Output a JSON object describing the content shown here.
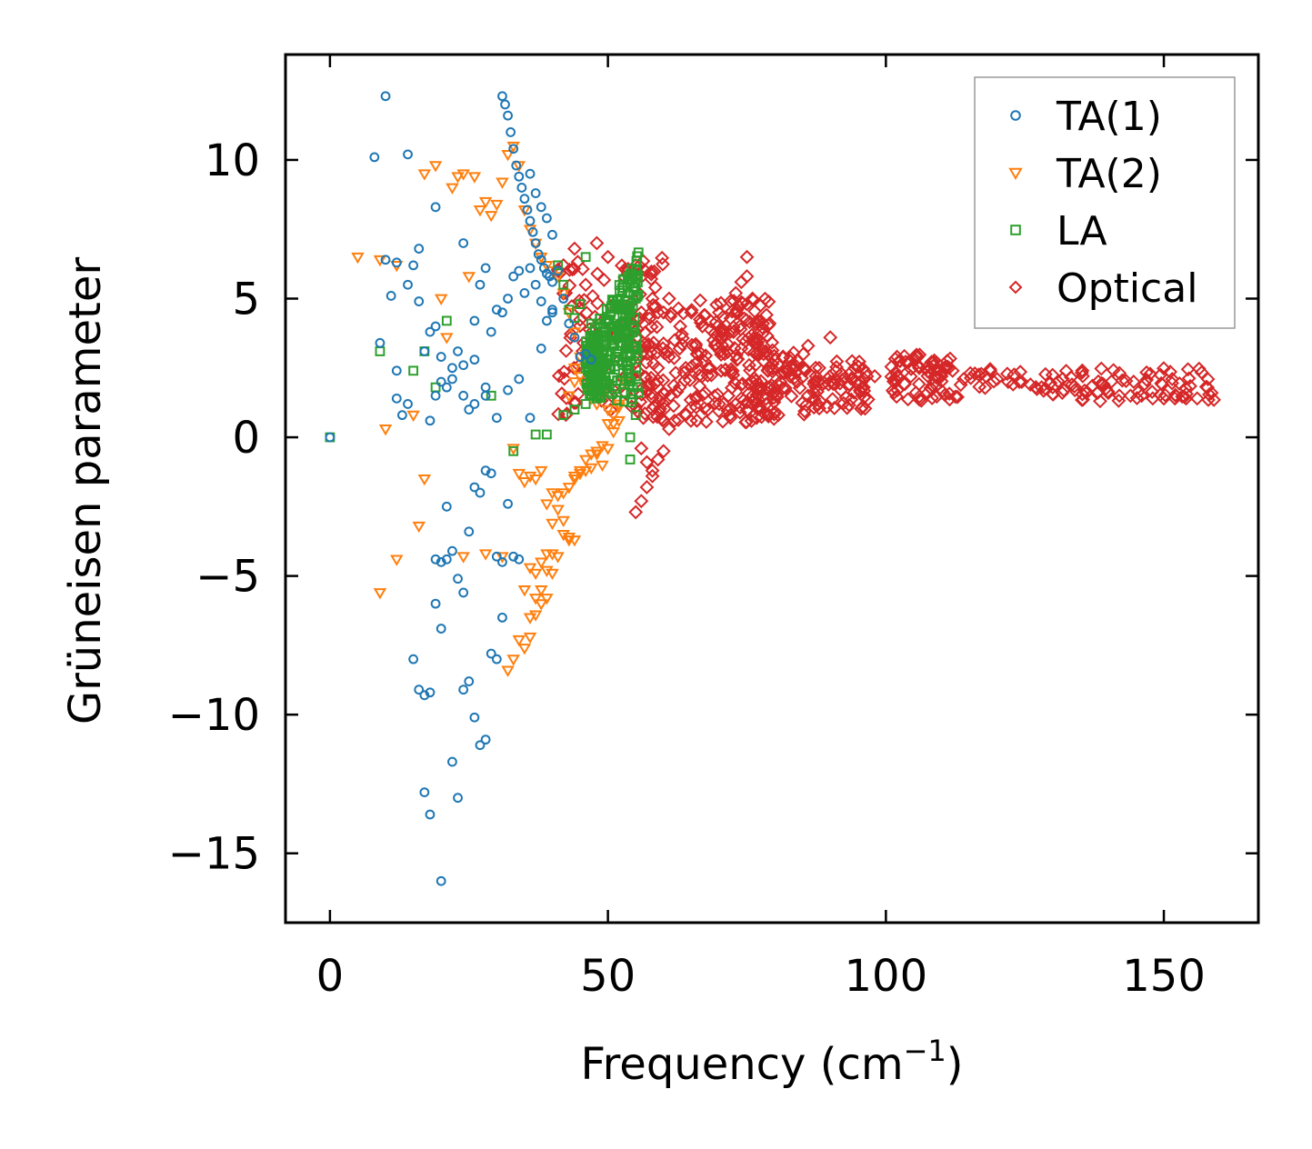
{
  "chart_data": {
    "type": "scatter",
    "title": "",
    "xlabel": "Frequency (cm",
    "xlabel_sup": "−1",
    "xlabel_close": ")",
    "ylabel": "Grüneisen parameter",
    "xlim": [
      -8,
      167
    ],
    "ylim": [
      -17.5,
      13.8
    ],
    "xticks": [
      0,
      50,
      100,
      150
    ],
    "xtick_labels": [
      "0",
      "50",
      "100",
      "150"
    ],
    "yticks": [
      -15,
      -10,
      -5,
      0,
      5,
      10
    ],
    "ytick_labels": [
      "−15",
      "−10",
      "−5",
      "0",
      "5",
      "10"
    ],
    "legend_position": "top-right",
    "colors": {
      "TA(1)": "#1f77b4",
      "TA(2)": "#ff7f0e",
      "LA": "#2ca02c",
      "Optical": "#d62728"
    },
    "series": [
      {
        "name": "TA(1)",
        "marker": "circle",
        "x": [
          0,
          8,
          9,
          10,
          11,
          12,
          14,
          15,
          16,
          17,
          18,
          19,
          20,
          21,
          22,
          23,
          24,
          25,
          26,
          27,
          28,
          29,
          30,
          31,
          32,
          33,
          34,
          35,
          36,
          37,
          38,
          39,
          40,
          17,
          18,
          19,
          20,
          20,
          21,
          22,
          23,
          24,
          25,
          26,
          27,
          28,
          29,
          30,
          31,
          15,
          16,
          17,
          18,
          19,
          20,
          21,
          22,
          23,
          24,
          25,
          26,
          27,
          28,
          29,
          30,
          31,
          32,
          33,
          34,
          12,
          13,
          14,
          18,
          19,
          20,
          22,
          24,
          26,
          28,
          30,
          32,
          34,
          36,
          38,
          40,
          31,
          31.5,
          32,
          32.5,
          33,
          33.5,
          34,
          34.5,
          35,
          35.5,
          36,
          36.5,
          37,
          37.5,
          38,
          38.5,
          39,
          39.5,
          40,
          36,
          37,
          38,
          39,
          40,
          41,
          42,
          43,
          44,
          45,
          46,
          47,
          10,
          12,
          14,
          16,
          19,
          24,
          26,
          28
        ],
        "y": [
          0,
          10.1,
          3.4,
          12.3,
          5.1,
          2.4,
          10.2,
          6.2,
          6.8,
          3.1,
          3.8,
          8.3,
          2.9,
          1.8,
          2.1,
          3.1,
          7.0,
          1.0,
          4.2,
          5.5,
          6.1,
          3.8,
          4.6,
          4.5,
          5.0,
          5.8,
          6.0,
          5.2,
          6.1,
          5.5,
          4.9,
          4.2,
          4.5,
          -12.8,
          -13.6,
          -6.0,
          -6.9,
          -16.0,
          -4.4,
          -11.7,
          -13.0,
          -9.1,
          -8.8,
          -10.1,
          -11.1,
          -10.9,
          -7.8,
          -8.0,
          -6.5,
          -8.0,
          -9.1,
          -9.3,
          -9.2,
          -4.4,
          -4.5,
          -2.5,
          -4.1,
          -5.1,
          -5.6,
          -3.4,
          -1.8,
          -2.0,
          -1.2,
          -1.3,
          -4.3,
          -4.5,
          -2.4,
          -4.3,
          -4.4,
          1.4,
          0.8,
          1.2,
          0.6,
          1.5,
          2.0,
          2.5,
          1.5,
          2.8,
          1.5,
          0.7,
          1.7,
          2.1,
          0.7,
          3.2,
          4.6,
          12.3,
          12.0,
          11.6,
          11.0,
          10.4,
          9.8,
          9.4,
          9.0,
          8.6,
          8.2,
          7.8,
          7.4,
          7.0,
          6.6,
          6.4,
          6.1,
          5.9,
          5.8,
          5.6,
          9.5,
          8.8,
          8.3,
          7.9,
          7.3,
          6.0,
          5.0,
          4.1,
          3.6,
          2.9,
          3.0,
          2.8,
          6.4,
          6.3,
          5.5,
          4.9,
          4.0,
          2.6,
          1.2,
          1.8
        ]
      },
      {
        "name": "TA(2)",
        "marker": "triangle-down",
        "x": [
          5,
          9,
          10,
          12,
          15,
          17,
          19,
          20,
          21,
          22,
          23,
          24,
          25,
          26,
          27,
          28,
          29,
          30,
          31,
          32,
          33,
          34,
          35,
          36,
          37,
          38,
          39,
          40,
          41,
          42,
          43,
          44,
          45,
          46,
          47,
          48,
          49,
          50,
          51,
          52,
          53,
          9,
          12,
          16,
          17,
          24,
          28,
          31,
          32,
          33,
          34,
          35,
          36,
          37,
          38,
          39,
          40,
          41,
          42,
          43,
          44,
          45,
          46,
          47,
          48,
          49,
          50,
          51,
          52,
          36,
          37,
          38,
          39,
          40,
          41,
          42,
          43,
          44,
          35,
          36,
          37,
          38,
          39,
          40,
          33,
          34,
          35,
          36,
          37,
          38,
          39,
          40,
          41,
          42,
          43,
          44,
          45,
          46,
          47,
          48,
          49,
          50,
          51,
          52,
          43,
          44,
          45,
          46,
          47,
          48,
          44,
          45,
          46,
          47
        ],
        "y": [
          6.5,
          6.4,
          0.3,
          6.2,
          0.8,
          9.5,
          9.8,
          5.0,
          3.6,
          9.0,
          9.4,
          9.5,
          5.8,
          9.4,
          8.2,
          8.5,
          8.0,
          8.4,
          9.2,
          10.2,
          10.5,
          9.8,
          8.2,
          7.5,
          7.0,
          6.5,
          6.2,
          6.0,
          5.8,
          5.2,
          4.5,
          3.8,
          2.9,
          3.0,
          2.0,
          2.5,
          1.5,
          1.0,
          0.5,
          1.2,
          2.0,
          -5.6,
          -4.4,
          -3.2,
          -1.5,
          -4.3,
          -4.2,
          -4.3,
          -8.4,
          -8.0,
          -7.3,
          -5.5,
          -4.7,
          -4.9,
          -4.5,
          -4.2,
          -3.1,
          -2.6,
          -3.0,
          -3.7,
          -1.4,
          -1.3,
          -1.2,
          -1.1,
          -0.6,
          -1.0,
          -0.4,
          0.2,
          0.6,
          -7.2,
          -6.4,
          -6.0,
          -5.8,
          -4.9,
          -4.3,
          -3.5,
          -3.6,
          -3.7,
          -7.6,
          -6.5,
          -5.8,
          -5.5,
          -4.8,
          -4.2,
          -0.4,
          -1.3,
          -1.6,
          -1.4,
          -1.5,
          -1.2,
          -2.4,
          -2.0,
          -2.1,
          -2.0,
          -1.8,
          -1.5,
          -1.2,
          -0.8,
          -0.6,
          -0.5,
          -0.3,
          0.5,
          0.8,
          1.1,
          1.5,
          2.0,
          2.2,
          1.8,
          1.4,
          1.2,
          2.5,
          2.2,
          1.8,
          1.6
        ]
      },
      {
        "name": "LA",
        "marker": "square",
        "x": [
          0,
          9,
          15,
          17,
          19,
          21,
          29,
          33,
          37,
          39,
          41,
          42,
          43,
          44,
          45,
          46,
          47,
          48,
          49,
          50,
          51,
          52,
          53,
          54,
          55,
          54,
          54.5,
          55,
          55.5,
          54,
          55,
          42,
          44,
          46,
          48
        ],
        "y": [
          0,
          3.1,
          2.4,
          3.1,
          1.8,
          4.2,
          1.5,
          -0.5,
          0.1,
          0.1,
          6.2,
          5.5,
          4.6,
          4.3,
          4.8,
          6.5,
          4.1,
          3.5,
          3.0,
          2.8,
          3.5,
          3.8,
          4.2,
          4.5,
          5.0,
          0.0,
          1.8,
          2.2,
          1.6,
          -0.8,
          0.8,
          0.8,
          1.0,
          1.2,
          1.4
        ],
        "dense_band": {
          "x_from": 46,
          "x_to": 55.5,
          "y_bottom_start": 1.5,
          "y_bottom_end": 1.2,
          "y_top_start": 3.5,
          "y_top_end": 6.7
        }
      },
      {
        "name": "Optical",
        "marker": "diamond",
        "x": [
          42,
          44,
          46,
          48,
          50,
          55,
          56,
          57,
          58,
          59,
          60,
          61,
          62,
          63,
          64,
          65,
          66,
          67,
          68,
          69,
          70,
          71,
          72,
          73,
          74,
          75,
          76,
          77,
          78,
          79,
          80,
          81,
          82,
          84,
          86,
          88,
          90,
          92,
          94,
          96,
          98,
          102,
          104,
          106,
          108,
          110,
          112,
          114,
          116,
          118,
          120,
          122,
          124,
          126,
          128,
          130,
          132,
          134,
          136,
          138,
          140,
          142,
          144,
          146,
          148,
          150,
          152,
          154,
          156,
          158,
          159,
          55,
          56,
          57,
          58,
          59,
          60,
          61,
          62,
          64,
          66,
          68,
          70,
          72,
          74,
          75,
          75,
          74,
          73,
          72,
          86,
          90,
          56,
          57,
          58
        ],
        "y": [
          6.2,
          6.8,
          5.5,
          7.0,
          6.5,
          6.2,
          4.5,
          3.0,
          5.0,
          2.5,
          4.5,
          5.0,
          3.5,
          4.0,
          2.5,
          4.5,
          3.0,
          4.0,
          2.5,
          3.5,
          4.5,
          3.0,
          3.8,
          4.5,
          3.2,
          4.8,
          5.0,
          4.2,
          3.0,
          2.5,
          2.8,
          2.0,
          2.5,
          2.0,
          1.5,
          2.5,
          2.0,
          2.3,
          2.1,
          1.8,
          2.2,
          2.9,
          2.7,
          2.5,
          2.3,
          2.2,
          2.4,
          2.1,
          2.3,
          2.2,
          2.1,
          2.0,
          2.0,
          1.9,
          1.8,
          1.8,
          1.7,
          1.7,
          1.6,
          1.6,
          1.6,
          1.5,
          1.5,
          1.5,
          1.4,
          1.4,
          1.4,
          1.4,
          1.4,
          1.35,
          1.35,
          -2.7,
          -2.3,
          -1.8,
          -1.2,
          -0.8,
          -0.5,
          0.3,
          0.6,
          0.8,
          0.6,
          1.0,
          1.2,
          0.8,
          1.4,
          5.8,
          6.5,
          5.6,
          5.2,
          4.9,
          3.3,
          3.6,
          -0.4,
          -0.9,
          -1.4
        ],
        "clusters": [
          {
            "x_from": 41,
            "x_to": 60,
            "y_from": 0.8,
            "y_to": 6.5,
            "n": 130
          },
          {
            "x_from": 55,
            "x_to": 80,
            "y_from": 0.5,
            "y_to": 5.0,
            "n": 220
          },
          {
            "x_from": 76,
            "x_to": 86,
            "y_from": 0.8,
            "y_to": 3.2,
            "n": 70
          },
          {
            "x_from": 87,
            "x_to": 97,
            "y_from": 1.0,
            "y_to": 2.8,
            "n": 60
          },
          {
            "x_from": 101,
            "x_to": 112,
            "y_from": 1.3,
            "y_to": 3.0,
            "n": 70
          },
          {
            "x_from": 112,
            "x_to": 159,
            "y_from": 1.3,
            "y_to": 2.5,
            "n": 90
          }
        ]
      }
    ]
  }
}
